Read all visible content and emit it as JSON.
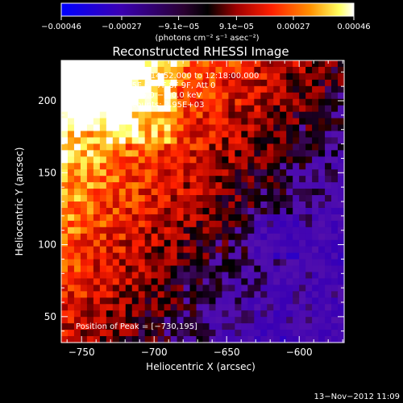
{
  "chart_data": {
    "type": "heatmap",
    "title": "Reconstructed RHESSI Image",
    "xlabel": "Heliocentric X (arcsec)",
    "ylabel": "Heliocentric Y (arcsec)",
    "xlim": [
      -764,
      -569
    ],
    "ylim": [
      32,
      228
    ],
    "x_ticks": [
      -750,
      -700,
      -650,
      -600
    ],
    "y_ticks": [
      50,
      100,
      150,
      200
    ],
    "x_tick_labels": [
      "−750",
      "−700",
      "−650",
      "−600"
    ],
    "y_tick_labels": [
      "50",
      "100",
      "150",
      "200"
    ],
    "colorbar": {
      "min": -0.00046,
      "max": 0.00046,
      "ticks": [
        -0.00046,
        -0.00027,
        -9.1e-05,
        9.1e-05,
        0.00027,
        0.00046
      ],
      "tick_labels": [
        "−0.00046",
        "−0.00027",
        "−9.1e−05",
        "9.1e−05",
        "0.00027",
        "0.00046"
      ],
      "units_label": "(photons cm⁻² s⁻¹ asec⁻²)",
      "colors": [
        "#0000ff",
        "#3a00b4",
        "#6a1aa0",
        "#000000",
        "#b00000",
        "#ff2000",
        "#ff8000",
        "#ffff40",
        "#ffffff"
      ]
    },
    "annotations": [
      "13−Nov−2012 12:14:52.000 to 12:18:00.000",
      "Detectors: 3F 5F 6F 7F 8F 9F, Att 0",
      "Energy Range: 25.0 − 50.0 keV",
      "Clean     Total counts: 3.95E+03"
    ],
    "peak_label": "Position of Peak = [−730,195]",
    "peak": [
      -730,
      195
    ],
    "grid": false
  },
  "footer": {
    "timestamp": "13−Nov−2012 11:09"
  }
}
